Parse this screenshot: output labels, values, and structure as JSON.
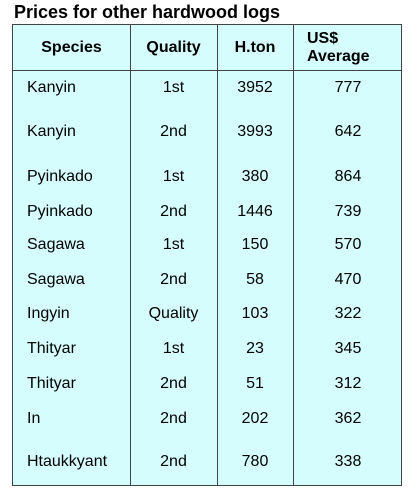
{
  "title": "Prices for other hardwood logs",
  "table": {
    "header": [
      "Species",
      "Quality",
      "H.ton",
      "US$\nAverage"
    ],
    "rows": [
      [
        "Kanyin",
        "1st",
        3952,
        777
      ],
      [
        "Kanyin",
        "2nd",
        3993,
        642
      ],
      [
        "Pyinkado",
        "1st",
        380,
        864
      ],
      [
        "Pyinkado",
        "2nd",
        1446,
        739
      ],
      [
        "Sagawa",
        "1st",
        150,
        570
      ],
      [
        "Sagawa",
        "2nd",
        58,
        470
      ],
      [
        "Ingyin",
        "Quality",
        103,
        322
      ],
      [
        "Thityar",
        "1st",
        23,
        345
      ],
      [
        "Thityar",
        "2nd",
        51,
        312
      ],
      [
        "In",
        "2nd",
        202,
        362
      ],
      [
        "Htaukkyant",
        "2nd",
        780,
        338
      ]
    ]
  }
}
